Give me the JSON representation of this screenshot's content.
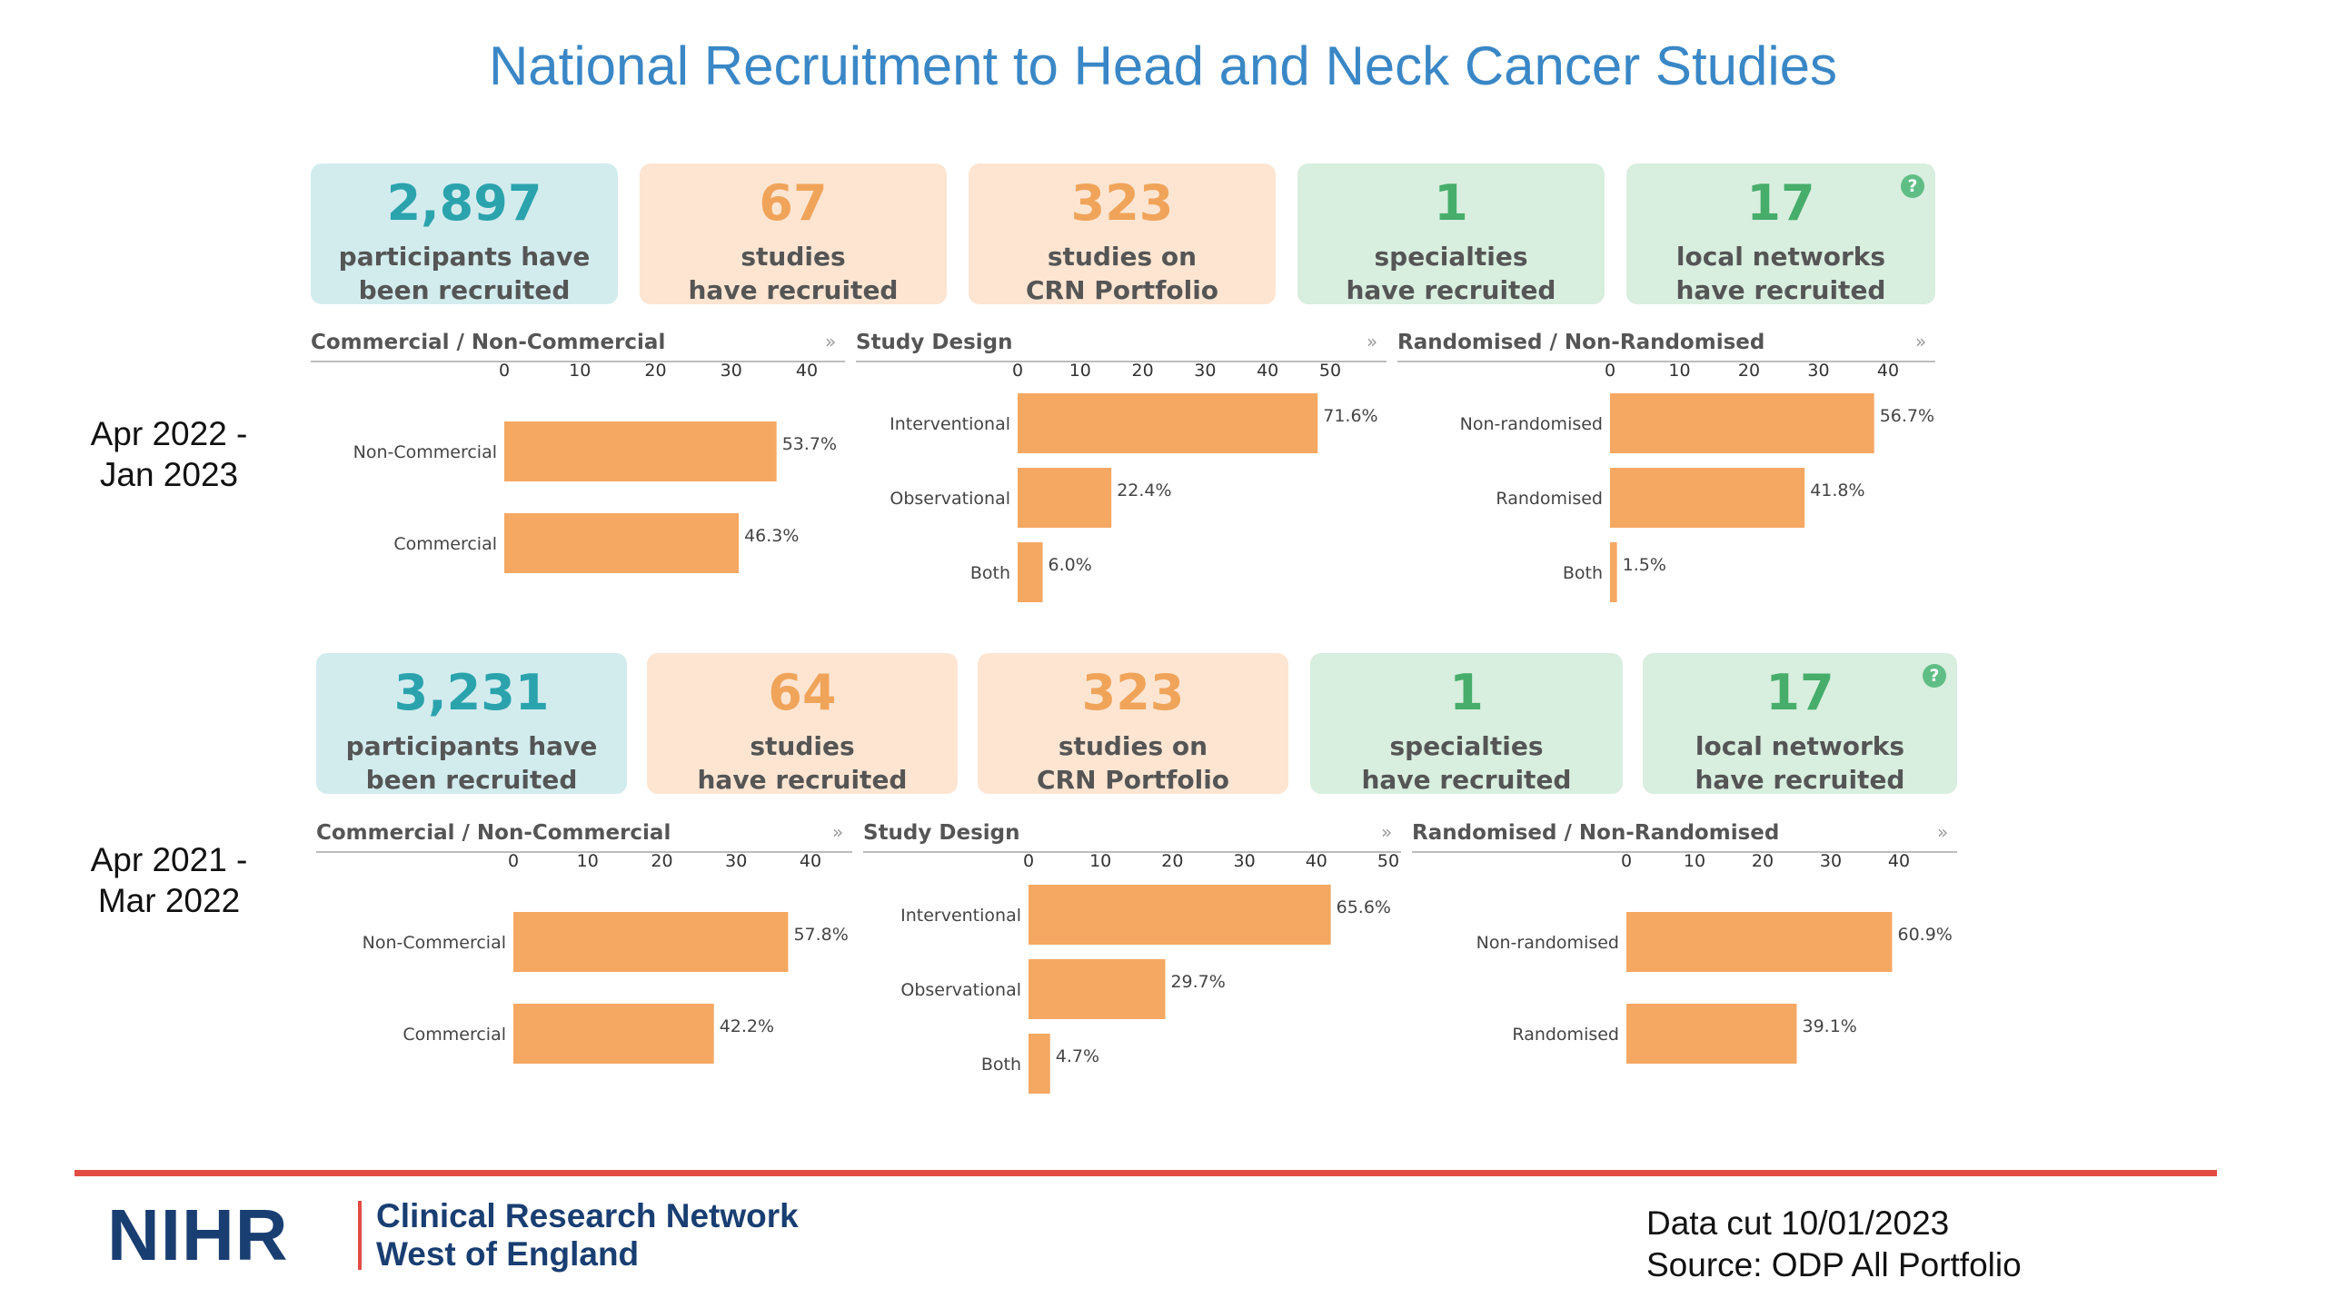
{
  "title": "National Recruitment to Head and Neck Cancer Studies",
  "colors": {
    "bar": "#f5a862",
    "title": "#3a87c6",
    "divider": "#e24c43",
    "logo": "#193e72"
  },
  "periods": [
    {
      "label_line1": "Apr 2022 -",
      "label_line2": "Jan 2023",
      "kpis": [
        {
          "value": "2,897",
          "line1": "participants have",
          "line2": "been recruited",
          "color": "blue"
        },
        {
          "value": "67",
          "line1": "studies",
          "line2": "have recruited",
          "color": "peach"
        },
        {
          "value": "323",
          "line1": "studies on",
          "line2": "CRN Portfolio",
          "color": "peach"
        },
        {
          "value": "1",
          "line1": "specialties",
          "line2": "have recruited",
          "color": "green"
        },
        {
          "value": "17",
          "line1": "local networks",
          "line2": "have recruited",
          "color": "green",
          "help_icon": "?"
        }
      ]
    },
    {
      "label_line1": "Apr 2021 -",
      "label_line2": "Mar 2022",
      "kpis": [
        {
          "value": "3,231",
          "line1": "participants have",
          "line2": "been recruited",
          "color": "blue"
        },
        {
          "value": "64",
          "line1": "studies",
          "line2": "have recruited",
          "color": "peach"
        },
        {
          "value": "323",
          "line1": "studies on",
          "line2": "CRN Portfolio",
          "color": "peach"
        },
        {
          "value": "1",
          "line1": "specialties",
          "line2": "have recruited",
          "color": "green"
        },
        {
          "value": "17",
          "line1": "local networks",
          "line2": "have recruited",
          "color": "green",
          "help_icon": "?"
        }
      ]
    }
  ],
  "chart_data": [
    {
      "type": "bar",
      "orientation": "horizontal",
      "period": "Apr 2022 - Jan 2023",
      "title": "Commercial / Non-Commercial",
      "expand_icon": "»",
      "ticks": [
        0,
        10,
        20,
        30,
        40
      ],
      "xlim": [
        0,
        40
      ],
      "categories": [
        "Non-Commercial",
        "Commercial"
      ],
      "values": [
        36,
        31
      ],
      "labels": [
        "53.7%",
        "46.3%"
      ]
    },
    {
      "type": "bar",
      "orientation": "horizontal",
      "period": "Apr 2022 - Jan 2023",
      "title": "Study Design",
      "expand_icon": "»",
      "ticks": [
        0,
        10,
        20,
        30,
        40,
        50
      ],
      "xlim": [
        0,
        50
      ],
      "categories": [
        "Interventional",
        "Observational",
        "Both"
      ],
      "values": [
        48,
        15,
        4
      ],
      "labels": [
        "71.6%",
        "22.4%",
        "6.0%"
      ]
    },
    {
      "type": "bar",
      "orientation": "horizontal",
      "period": "Apr 2022 - Jan 2023",
      "title": "Randomised / Non-Randomised",
      "expand_icon": "»",
      "ticks": [
        0,
        10,
        20,
        30,
        40
      ],
      "xlim": [
        0,
        40
      ],
      "categories": [
        "Non-randomised",
        "Randomised",
        "Both"
      ],
      "values": [
        38,
        28,
        1
      ],
      "labels": [
        "56.7%",
        "41.8%",
        "1.5%"
      ]
    },
    {
      "type": "bar",
      "orientation": "horizontal",
      "period": "Apr 2021 - Mar 2022",
      "title": "Commercial / Non-Commercial",
      "expand_icon": "»",
      "ticks": [
        0,
        10,
        20,
        30,
        40
      ],
      "xlim": [
        0,
        40
      ],
      "categories": [
        "Non-Commercial",
        "Commercial"
      ],
      "values": [
        37,
        27
      ],
      "labels": [
        "57.8%",
        "42.2%"
      ]
    },
    {
      "type": "bar",
      "orientation": "horizontal",
      "period": "Apr 2021 - Mar 2022",
      "title": "Study Design",
      "expand_icon": "»",
      "ticks": [
        0,
        10,
        20,
        30,
        40,
        50
      ],
      "xlim": [
        0,
        50
      ],
      "categories": [
        "Interventional",
        "Observational",
        "Both"
      ],
      "values": [
        42,
        19,
        3
      ],
      "labels": [
        "65.6%",
        "29.7%",
        "4.7%"
      ]
    },
    {
      "type": "bar",
      "orientation": "horizontal",
      "period": "Apr 2021 - Mar 2022",
      "title": "Randomised / Non-Randomised",
      "expand_icon": "»",
      "ticks": [
        0,
        10,
        20,
        30,
        40
      ],
      "xlim": [
        0,
        40
      ],
      "categories": [
        "Non-randomised",
        "Randomised"
      ],
      "values": [
        39,
        25
      ],
      "labels": [
        "60.9%",
        "39.1%"
      ]
    }
  ],
  "footer": {
    "logo_text": "NIHR",
    "org_line1": "Clinical Research Network",
    "org_line2": "West of England",
    "datacut": "Data cut 10/01/2023",
    "source": "Source: ODP All Portfolio"
  }
}
